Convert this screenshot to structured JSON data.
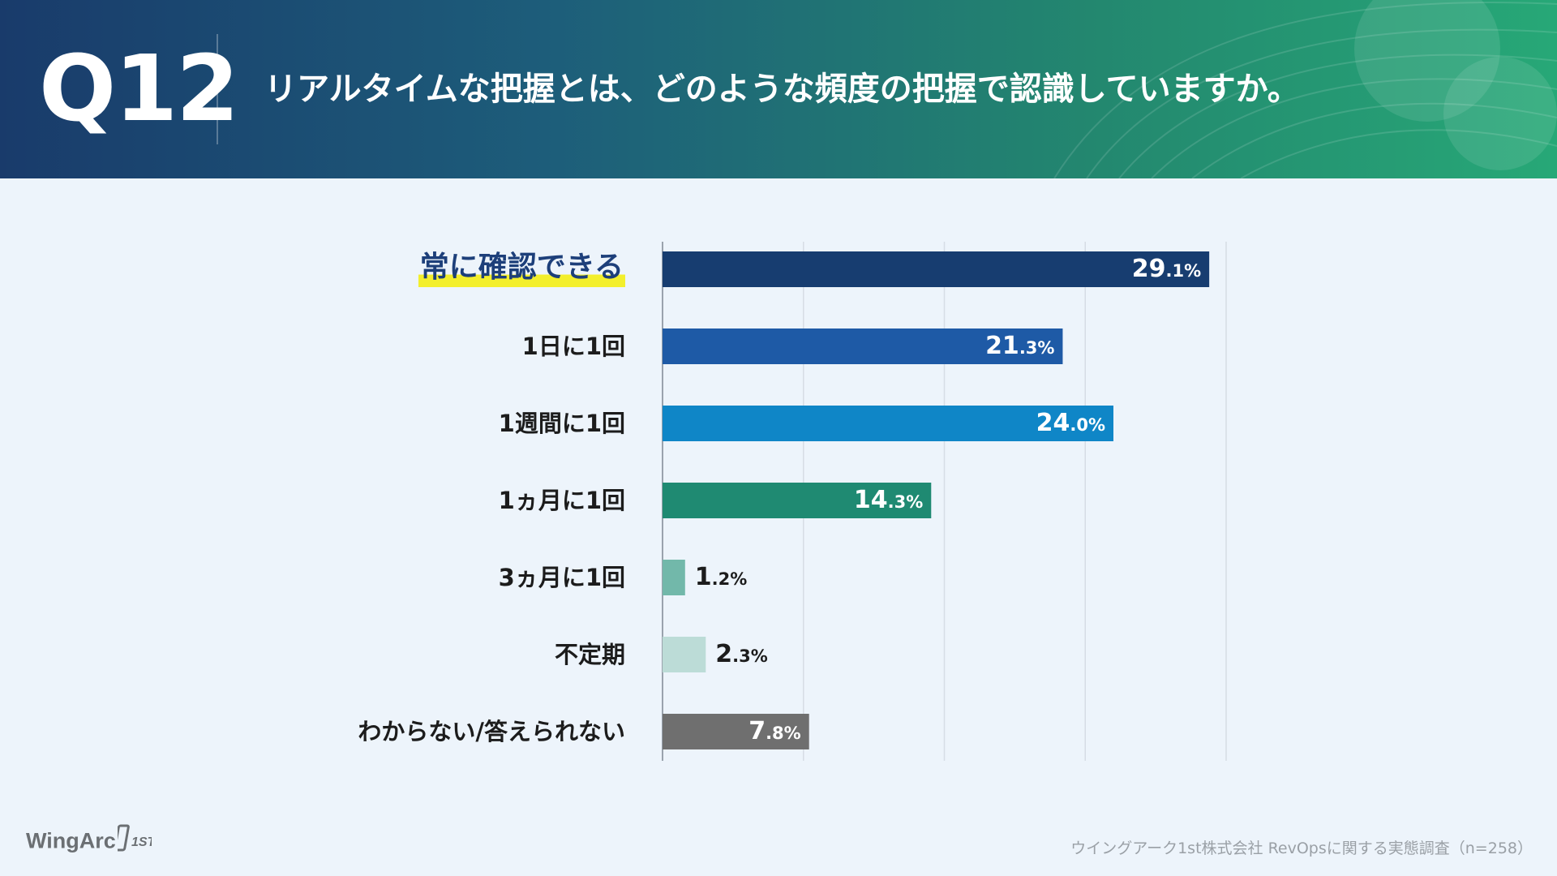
{
  "header": {
    "question_number": "Q12",
    "question_text": "リアルタイムな把握とは、どのような頻度の把握で認識していますか。"
  },
  "colors": {
    "header_start": "#193b6b",
    "header_end": "#27a877",
    "highlight": "#f3ef2c",
    "grid": "#d6dde5"
  },
  "chart_data": {
    "type": "bar",
    "orientation": "horizontal",
    "title": "リアルタイムな把握とは、どのような頻度の把握で認識していますか。",
    "xlabel": "",
    "ylabel": "",
    "xlim": [
      0,
      30
    ],
    "grid": true,
    "unit": "%",
    "categories": [
      "常に確認できる",
      "1日に1回",
      "1週間に1回",
      "1ヵ月に1回",
      "3ヵ月に1回",
      "不定期",
      "わからない/答えられない"
    ],
    "values": [
      29.1,
      21.3,
      24.0,
      14.3,
      1.2,
      2.3,
      7.8
    ],
    "value_labels": [
      {
        "int": "29",
        "dec": ".1%"
      },
      {
        "int": "21",
        "dec": ".3%"
      },
      {
        "int": "24",
        "dec": ".0%"
      },
      {
        "int": "14",
        "dec": ".3%"
      },
      {
        "int": "1",
        "dec": ".2%"
      },
      {
        "int": "2",
        "dec": ".3%"
      },
      {
        "int": "7",
        "dec": ".8%"
      }
    ],
    "bar_colors": [
      "#173d70",
      "#1e5aa6",
      "#0f86c7",
      "#1f8a72",
      "#72b8aa",
      "#bcdcd7",
      "#6f6f6f"
    ],
    "label_inside": [
      true,
      true,
      true,
      true,
      false,
      false,
      true
    ],
    "highlighted_category": "常に確認できる"
  },
  "footer": {
    "logo_text": "WingArc",
    "logo_mark": "1ST",
    "source": "ウイングアーク1st株式会社 RevOpsに関する実態調査（n=258）"
  }
}
